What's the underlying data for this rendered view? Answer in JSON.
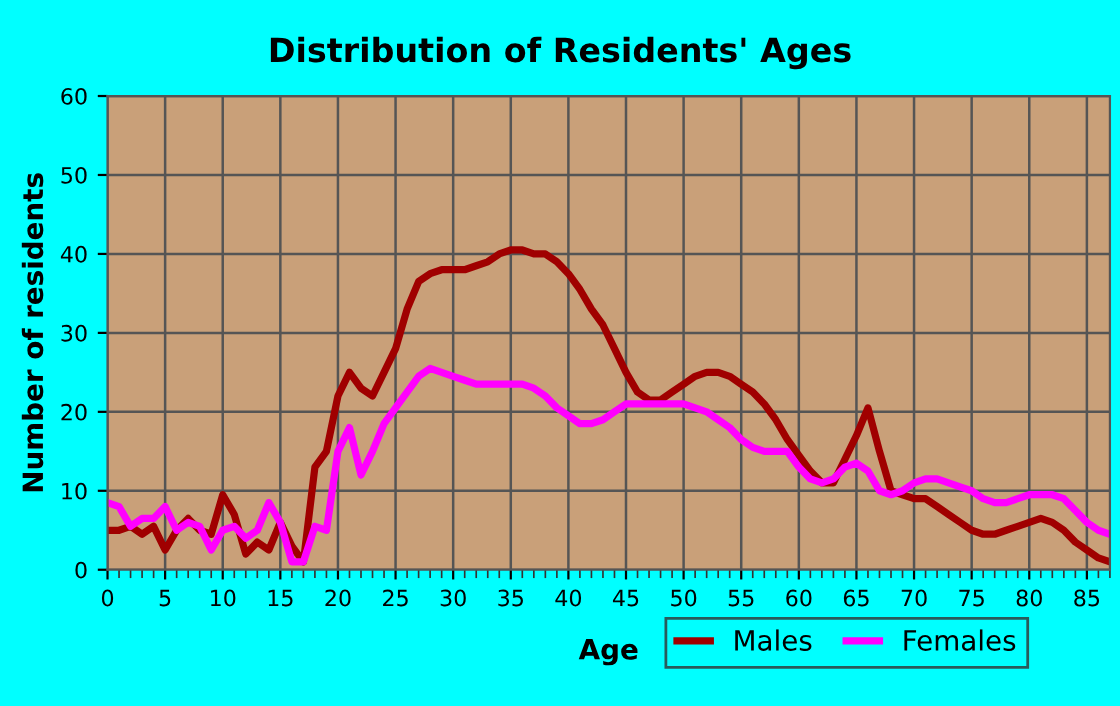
{
  "chart_data": {
    "type": "line",
    "title": "Distribution of Residents' Ages",
    "xlabel": "Age",
    "ylabel": "Number of residents",
    "x": [
      0,
      1,
      2,
      3,
      4,
      5,
      6,
      7,
      8,
      9,
      10,
      11,
      12,
      13,
      14,
      15,
      16,
      17,
      18,
      19,
      20,
      21,
      22,
      23,
      24,
      25,
      26,
      27,
      28,
      29,
      30,
      31,
      32,
      33,
      34,
      35,
      36,
      37,
      38,
      39,
      40,
      41,
      42,
      43,
      44,
      45,
      46,
      47,
      48,
      49,
      50,
      51,
      52,
      53,
      54,
      55,
      56,
      57,
      58,
      59,
      60,
      61,
      62,
      63,
      64,
      65,
      66,
      67,
      68,
      69,
      70,
      71,
      72,
      73,
      74,
      75,
      76,
      77,
      78,
      79,
      80,
      81,
      82,
      83,
      84,
      85,
      86,
      87
    ],
    "series": [
      {
        "name": "Males",
        "color": "#a00000",
        "values": [
          5,
          5,
          5.5,
          4.5,
          5.5,
          2.5,
          5,
          6.5,
          5,
          4.5,
          9.5,
          7,
          2,
          3.5,
          2.5,
          6,
          3,
          1,
          13,
          15,
          22,
          25,
          23,
          22,
          25,
          28,
          33,
          36.5,
          37.5,
          38,
          38,
          38,
          38.5,
          39,
          40,
          40.5,
          40.5,
          40,
          40,
          39,
          37.5,
          35.5,
          33,
          31,
          28,
          25,
          22.5,
          21.5,
          21.5,
          22.5,
          23.5,
          24.5,
          25,
          25,
          24.5,
          23.5,
          22.5,
          21,
          19,
          16.5,
          14.5,
          12.5,
          11,
          11,
          14,
          17,
          20.5,
          15,
          10,
          9.5,
          9,
          9,
          8,
          7,
          6,
          5,
          4.5,
          4.5,
          5,
          5.5,
          6,
          6.5,
          6,
          5,
          3.5,
          2.5,
          1.5,
          1
        ]
      },
      {
        "name": "Females",
        "color": "#ff00ff",
        "values": [
          8.5,
          8,
          5.5,
          6.5,
          6.5,
          8,
          5,
          6,
          5.5,
          2.5,
          5,
          5.5,
          4,
          5,
          8.5,
          6,
          1,
          1,
          5.5,
          5,
          15,
          18,
          12,
          15,
          18.5,
          20.5,
          22.5,
          24.5,
          25.5,
          25,
          24.5,
          24,
          23.5,
          23.5,
          23.5,
          23.5,
          23.5,
          23,
          22,
          20.5,
          19.5,
          18.5,
          18.5,
          19,
          20,
          21,
          21,
          21,
          21,
          21,
          21,
          20.5,
          20,
          19,
          18,
          16.5,
          15.5,
          15,
          15,
          15,
          13,
          11.5,
          11,
          11.5,
          13,
          13.5,
          12.5,
          10,
          9.5,
          10,
          11,
          11.5,
          11.5,
          11,
          10.5,
          10,
          9,
          8.5,
          8.5,
          9,
          9.5,
          9.5,
          9.5,
          9,
          7.5,
          6,
          5,
          4.5
        ]
      }
    ],
    "xlim": [
      0,
      87
    ],
    "xticks": [
      0,
      5,
      10,
      15,
      20,
      25,
      30,
      35,
      40,
      45,
      50,
      55,
      60,
      65,
      70,
      75,
      80,
      85
    ],
    "ylim": [
      0,
      60
    ],
    "yticks": [
      0,
      10,
      20,
      30,
      40,
      50,
      60
    ],
    "grid": true,
    "legend": "bottom right",
    "marker": "none",
    "line_style": "solid"
  }
}
